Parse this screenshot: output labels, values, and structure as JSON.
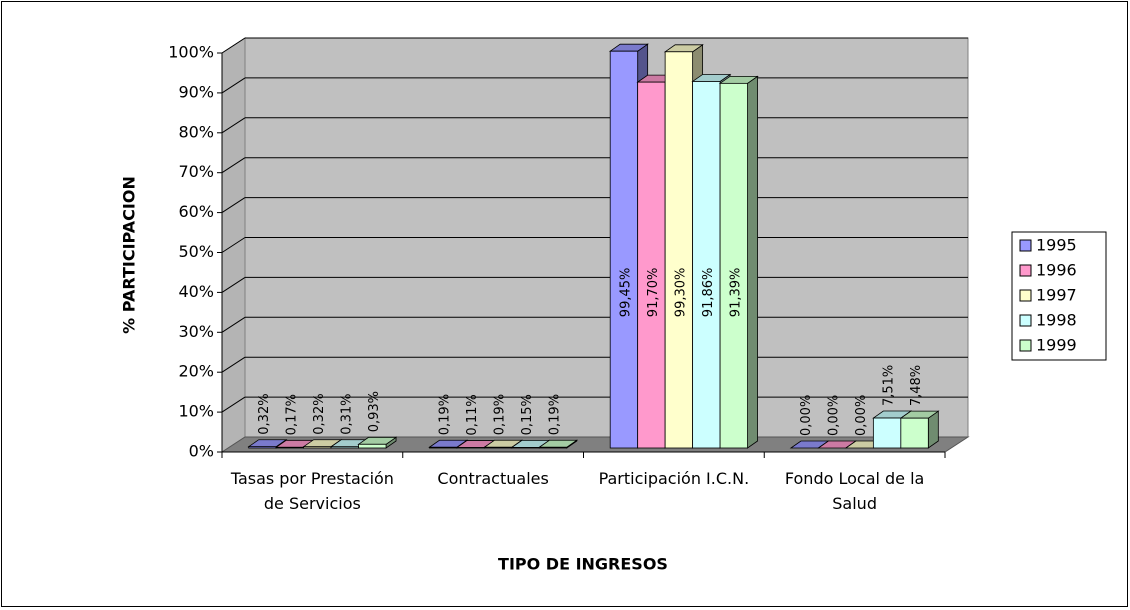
{
  "chart_data": {
    "type": "bar3d",
    "x_label": "TIPO DE INGRESOS",
    "y_label": "% PARTICIPACION",
    "categories": [
      "Tasas por Prestación de Servicios",
      "Contractuales",
      "Participación I.C.N.",
      "Fondo Local de la Salud"
    ],
    "series": [
      {
        "name": "1995",
        "color": "#9999ff",
        "values": [
          0.32,
          0.19,
          99.45,
          0.0
        ],
        "value_labels": [
          "0,32%",
          "0,19%",
          "99,45%",
          "0,00%"
        ]
      },
      {
        "name": "1996",
        "color": "#ff99cc",
        "values": [
          0.17,
          0.11,
          91.7,
          0.0
        ],
        "value_labels": [
          "0,17%",
          "0,11%",
          "91,70%",
          "0,00%"
        ]
      },
      {
        "name": "1997",
        "color": "#ffffcc",
        "values": [
          0.32,
          0.19,
          99.3,
          0.0
        ],
        "value_labels": [
          "0,32%",
          "0,19%",
          "99,30%",
          "0,00%"
        ]
      },
      {
        "name": "1998",
        "color": "#ccffff",
        "values": [
          0.31,
          0.15,
          91.86,
          7.51
        ],
        "value_labels": [
          "0,31%",
          "0,15%",
          "91,86%",
          "7,51%"
        ]
      },
      {
        "name": "1999",
        "color": "#ccffcc",
        "values": [
          0.93,
          0.19,
          91.39,
          7.48
        ],
        "value_labels": [
          "0,93%",
          "0,19%",
          "91,39%",
          "7,48%"
        ]
      }
    ],
    "ylim": [
      0,
      100
    ],
    "yticks": [
      {
        "value": 0,
        "label": "0%"
      },
      {
        "value": 10,
        "label": "10%"
      },
      {
        "value": 20,
        "label": "20%"
      },
      {
        "value": 30,
        "label": "30%"
      },
      {
        "value": 40,
        "label": "40%"
      },
      {
        "value": 50,
        "label": "50%"
      },
      {
        "value": 60,
        "label": "60%"
      },
      {
        "value": 70,
        "label": "70%"
      },
      {
        "value": 80,
        "label": "80%"
      },
      {
        "value": 90,
        "label": "90%"
      },
      {
        "value": 100,
        "label": "100%"
      }
    ],
    "grid": true,
    "legend": "right"
  }
}
